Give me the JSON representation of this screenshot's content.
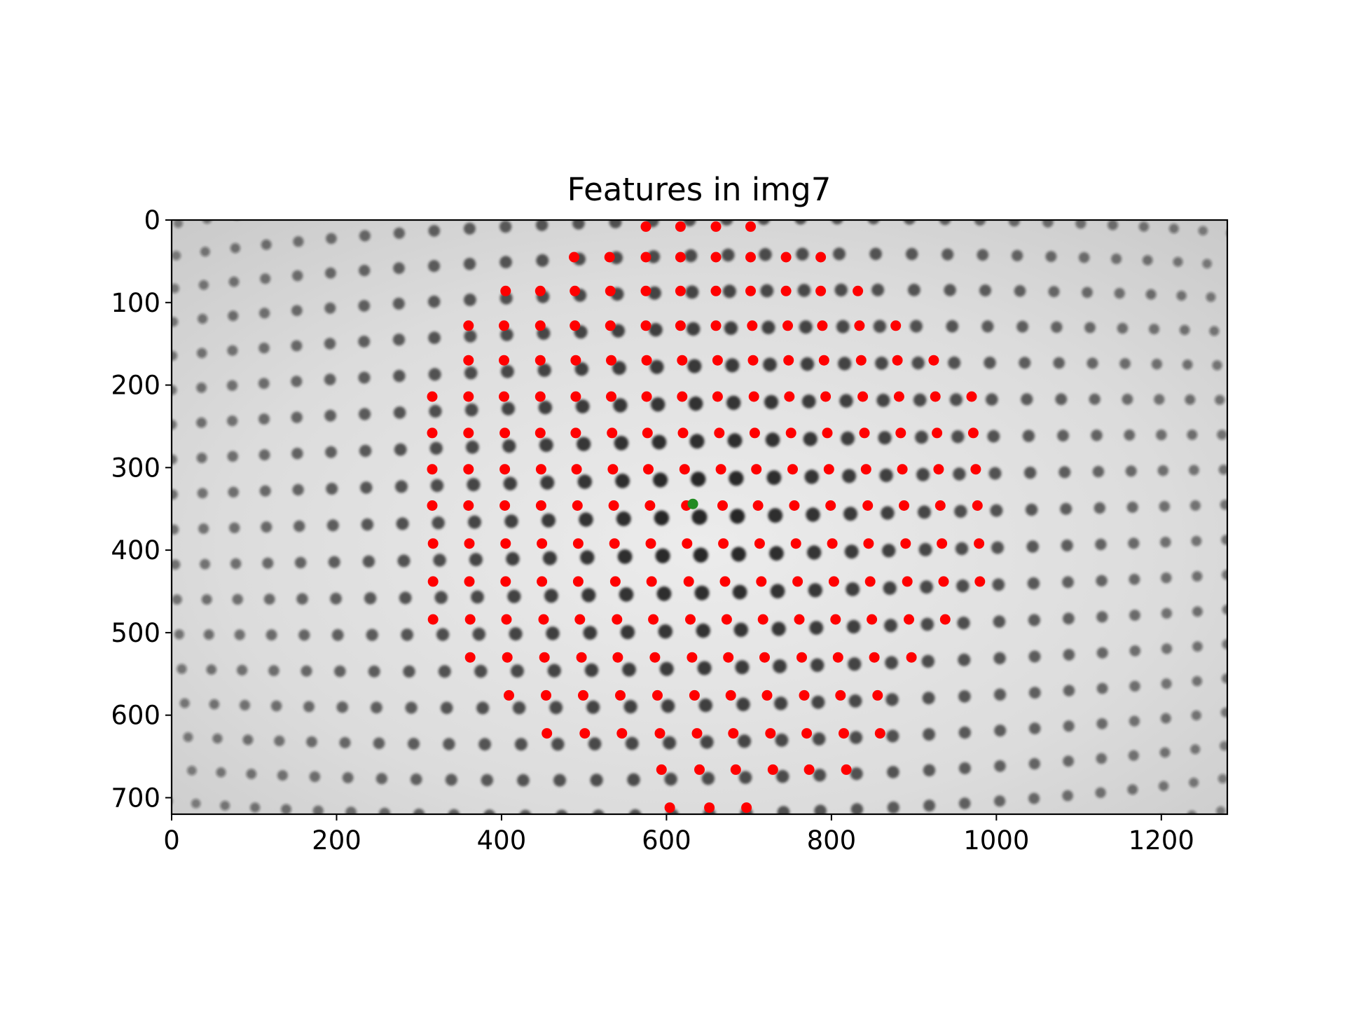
{
  "figure": {
    "title": "Features in img7"
  },
  "image": {
    "width": 1280,
    "height": 720,
    "description_rows": 16,
    "dot_color": "#1a1a1a",
    "background_color": "#d9d9d9"
  },
  "axes": {
    "x_ticks": [
      0,
      200,
      400,
      600,
      800,
      1000,
      1200
    ],
    "x_tick_labels": [
      "0",
      "200",
      "400",
      "600",
      "800",
      "1000",
      "1200"
    ],
    "y_ticks": [
      0,
      100,
      200,
      300,
      400,
      500,
      600,
      700
    ],
    "y_tick_labels": [
      "0",
      "100",
      "200",
      "300",
      "400",
      "500",
      "600",
      "700"
    ],
    "xlim": [
      0,
      1280
    ],
    "ylim": [
      720,
      0
    ]
  },
  "features": {
    "marker_color": "#ff0000",
    "center_marker_color": "#228b22",
    "center_point": [
      632,
      344
    ],
    "rows": [
      {
        "y": 8,
        "x": [
          575,
          617,
          660,
          702
        ]
      },
      {
        "y": 45,
        "x": [
          488,
          531,
          575,
          617,
          660,
          702,
          745,
          787
        ]
      },
      {
        "y": 86,
        "x": [
          405,
          447,
          489,
          532,
          575,
          617,
          660,
          702,
          745,
          787,
          832
        ]
      },
      {
        "y": 128,
        "x": [
          360,
          403,
          447,
          489,
          532,
          575,
          617,
          660,
          704,
          747,
          789,
          834,
          878
        ]
      },
      {
        "y": 170,
        "x": [
          360,
          403,
          447,
          490,
          533,
          576,
          619,
          662,
          705,
          748,
          791,
          836,
          880,
          924
        ]
      },
      {
        "y": 214,
        "x": [
          316,
          360,
          403,
          447,
          490,
          533,
          576,
          619,
          662,
          706,
          749,
          793,
          838,
          882,
          926,
          970
        ]
      },
      {
        "y": 258,
        "x": [
          316,
          360,
          404,
          447,
          490,
          534,
          577,
          620,
          664,
          707,
          751,
          795,
          840,
          884,
          928,
          972
        ]
      },
      {
        "y": 302,
        "x": [
          316,
          360,
          404,
          448,
          491,
          535,
          578,
          622,
          666,
          709,
          753,
          797,
          842,
          886,
          930,
          975
        ]
      },
      {
        "y": 346,
        "x": [
          316,
          360,
          404,
          448,
          492,
          536,
          580,
          624,
          668,
          711,
          755,
          799,
          844,
          888,
          932,
          977
        ]
      },
      {
        "y": 392,
        "x": [
          317,
          361,
          405,
          449,
          493,
          537,
          581,
          625,
          669,
          713,
          757,
          801,
          845,
          890,
          934,
          979
        ]
      },
      {
        "y": 438,
        "x": [
          317,
          361,
          405,
          449,
          493,
          538,
          582,
          627,
          671,
          715,
          759,
          803,
          847,
          892,
          936,
          980
        ]
      },
      {
        "y": 484,
        "x": [
          317,
          362,
          406,
          451,
          495,
          540,
          584,
          629,
          673,
          717,
          761,
          805,
          849,
          894,
          938
        ]
      },
      {
        "y": 530,
        "x": [
          362,
          407,
          452,
          497,
          541,
          586,
          631,
          675,
          719,
          764,
          808,
          852,
          897
        ]
      },
      {
        "y": 576,
        "x": [
          409,
          454,
          499,
          544,
          589,
          634,
          678,
          722,
          767,
          811,
          856
        ]
      },
      {
        "y": 622,
        "x": [
          455,
          501,
          546,
          592,
          637,
          681,
          726,
          770,
          815,
          859
        ]
      },
      {
        "y": 666,
        "x": [
          594,
          640,
          684,
          729,
          773,
          818
        ]
      },
      {
        "y": 712,
        "x": [
          604,
          652,
          697
        ]
      }
    ]
  }
}
